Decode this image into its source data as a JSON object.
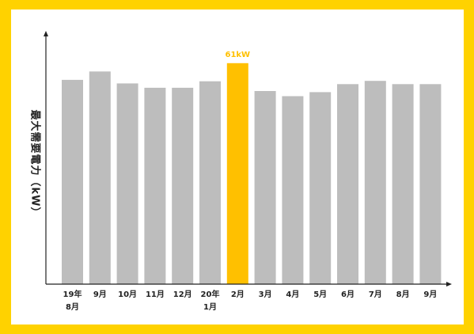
{
  "chart_data": {
    "type": "bar",
    "ylabel": "最大需要電力（kW）",
    "categories": [
      [
        "19年",
        "8月"
      ],
      [
        "9月"
      ],
      [
        "10月"
      ],
      [
        "11月"
      ],
      [
        "12月"
      ],
      [
        "20年",
        "1月"
      ],
      [
        "2月"
      ],
      [
        "3月"
      ],
      [
        "4月"
      ],
      [
        "5月"
      ],
      [
        "6月"
      ],
      [
        "7月"
      ],
      [
        "8月"
      ],
      [
        "9月"
      ]
    ],
    "values": [
      56.4,
      58.7,
      55.4,
      54.2,
      54.2,
      56.0,
      61,
      53.3,
      51.9,
      53.0,
      55.2,
      56.1,
      55.2,
      55.2
    ],
    "ylim": [
      0,
      70
    ],
    "highlight_index": 6,
    "data_labels": {
      "6": "61kW"
    },
    "grid": false,
    "legend": "none",
    "colors": {
      "bar": "#BDBDBD",
      "highlight": "#FFC000",
      "highlight_label": "#FFC000",
      "axis": "#222222",
      "frame": "#FFD200"
    }
  }
}
